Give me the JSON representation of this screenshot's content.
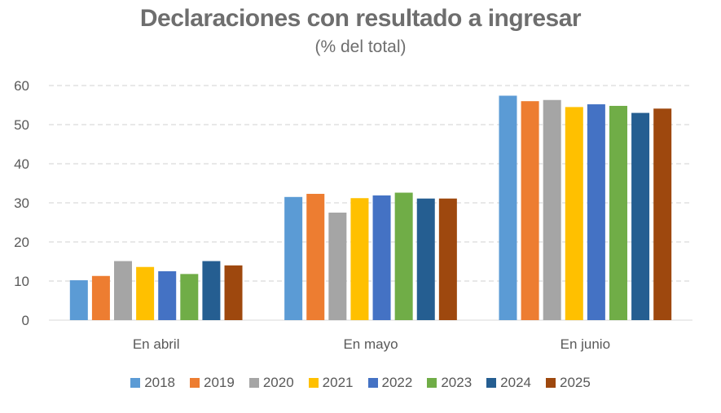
{
  "chart_data": {
    "type": "bar",
    "title": "Declaraciones con resultado a ingresar",
    "subtitle": "(% del total)",
    "xlabel": "",
    "ylabel": "",
    "ylim": [
      0,
      60
    ],
    "yticks": [
      0,
      10,
      20,
      30,
      40,
      50,
      60
    ],
    "grid": true,
    "legend_position": "bottom",
    "categories": [
      "En abril",
      "En mayo",
      "En junio"
    ],
    "series": [
      {
        "name": "2018",
        "color": "#5b9bd5",
        "values": [
          10.2,
          31.5,
          57.4
        ]
      },
      {
        "name": "2019",
        "color": "#ed7d31",
        "values": [
          11.3,
          32.3,
          56.0
        ]
      },
      {
        "name": "2020",
        "color": "#a5a5a5",
        "values": [
          15.1,
          27.5,
          56.3
        ]
      },
      {
        "name": "2021",
        "color": "#ffc000",
        "values": [
          13.6,
          31.2,
          54.5
        ]
      },
      {
        "name": "2022",
        "color": "#4472c4",
        "values": [
          12.5,
          31.9,
          55.2
        ]
      },
      {
        "name": "2023",
        "color": "#70ad47",
        "values": [
          11.8,
          32.6,
          54.8
        ]
      },
      {
        "name": "2024",
        "color": "#255e91",
        "values": [
          15.1,
          31.1,
          53.0
        ]
      },
      {
        "name": "2025",
        "color": "#9e480e",
        "values": [
          14.0,
          31.1,
          54.1
        ]
      }
    ]
  }
}
